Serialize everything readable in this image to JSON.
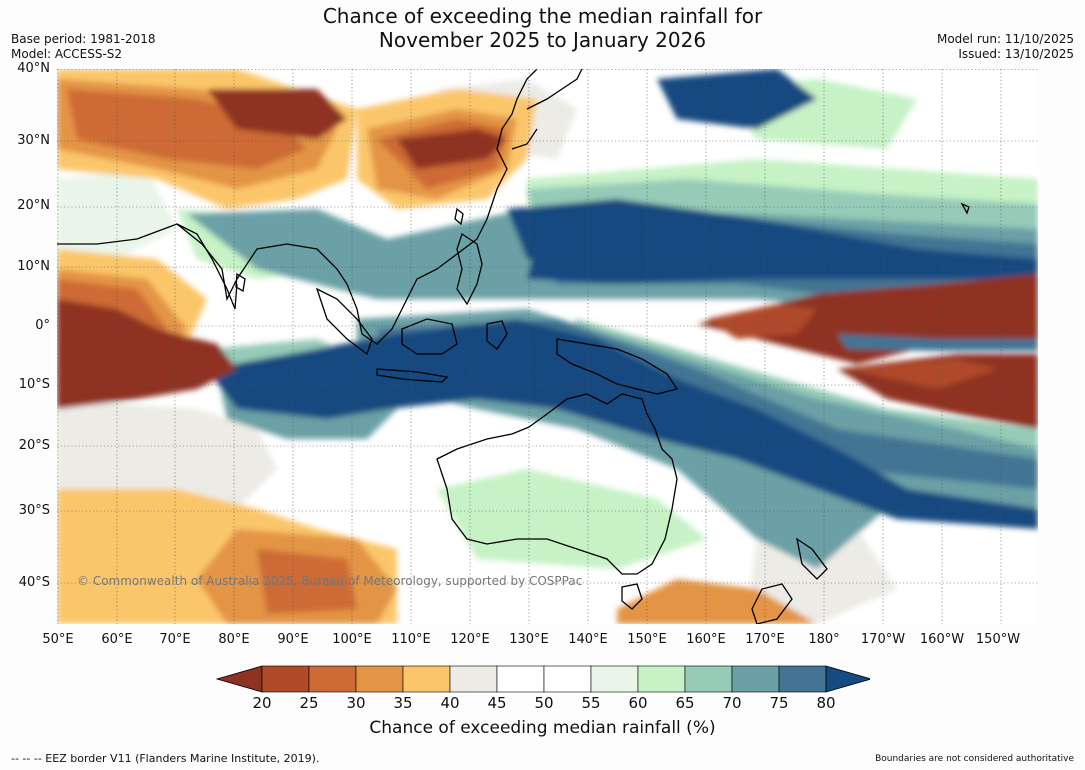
{
  "title_line1": "Chance of exceeding the median rainfall for",
  "title_line2": "November 2025 to January 2026",
  "base_period": "Base period: 1981-2018",
  "model": "Model: ACCESS-S2",
  "model_run": "Model run: 11/10/2025",
  "issued": "Issued: 13/10/2025",
  "lat_labels": [
    "40°N",
    "30°N",
    "20°N",
    "10°N",
    "0°",
    "10°S",
    "20°S",
    "30°S",
    "40°S"
  ],
  "lon_labels": [
    "50°E",
    "60°E",
    "70°E",
    "80°E",
    "90°E",
    "100°E",
    "110°E",
    "120°E",
    "130°E",
    "140°E",
    "150°E",
    "160°E",
    "170°E",
    "180°",
    "170°W",
    "160°W",
    "150°W"
  ],
  "copyright": "© Commonwealth of Australia 2025, Bureau of Meteorology, supported by COSPPac",
  "legend": {
    "ticks": [
      "20",
      "25",
      "30",
      "35",
      "40",
      "45",
      "50",
      "55",
      "60",
      "65",
      "70",
      "75",
      "80"
    ],
    "colors": [
      "#8f3222",
      "#b04a29",
      "#cd6a35",
      "#e39445",
      "#fbc66a",
      "#ecebe6",
      "#ffffff",
      "#ffffff",
      "#eaf5ea",
      "#c6f2c6",
      "#95cbb7",
      "#6aa0a6",
      "#437494",
      "#164a80"
    ],
    "title": "Chance of exceeding median rainfall (%)"
  },
  "footer_left": "--  --  -- EEZ border V11 (Flanders Marine Institute, 2019).",
  "footer_right": "Boundaries are not considered authoritative"
}
